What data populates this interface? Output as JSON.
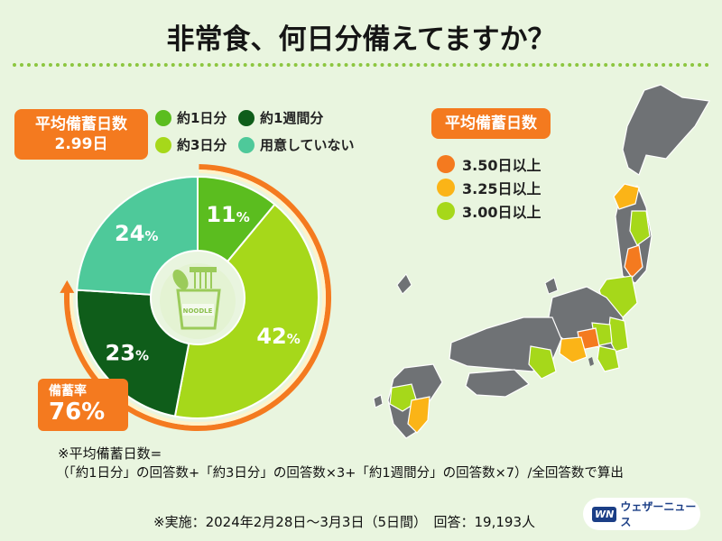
{
  "title": "非常食、何日分備えてますか？",
  "avg_badge": {
    "label": "平均備蓄日数",
    "value": "2.99日"
  },
  "rate_badge": {
    "label": "備蓄率",
    "value": "76%"
  },
  "icon_text": "NOODLE",
  "colors": {
    "orange": "#f47a1f",
    "one_day": "#5bbd1f",
    "three_days": "#a6d81a",
    "one_week": "#0f5d1a",
    "none": "#4ec99a",
    "pref_3_50": "#f47a1f",
    "pref_3_25": "#fbb417",
    "pref_3_00": "#a6d81a",
    "map_gray": "#6f7275"
  },
  "chart_data": {
    "type": "pie",
    "categories": [
      "約1日分",
      "約3日分",
      "約1週間分",
      "用意していない"
    ],
    "values": [
      11,
      42,
      23,
      24
    ],
    "unit": "%",
    "legend": "top"
  },
  "map_legend": {
    "title": "平均備蓄日数",
    "items": [
      {
        "label": "3.50日以上",
        "color": "#f47a1f"
      },
      {
        "label": "3.25日以上",
        "color": "#fbb417"
      },
      {
        "label": "3.00日以上",
        "color": "#a6d81a"
      }
    ]
  },
  "notes": {
    "formula_title": "※平均備蓄日数=",
    "formula": "（「約1日分」の回答数+「約3日分」の回答数×3+「約1週間分」の回答数×7）/全回答数で算出",
    "survey": "※実施：2024年2月28日〜3月3日（5日間）　回答：19,193人"
  },
  "logo": {
    "mark": "WN",
    "text": "ウェザーニュース"
  }
}
